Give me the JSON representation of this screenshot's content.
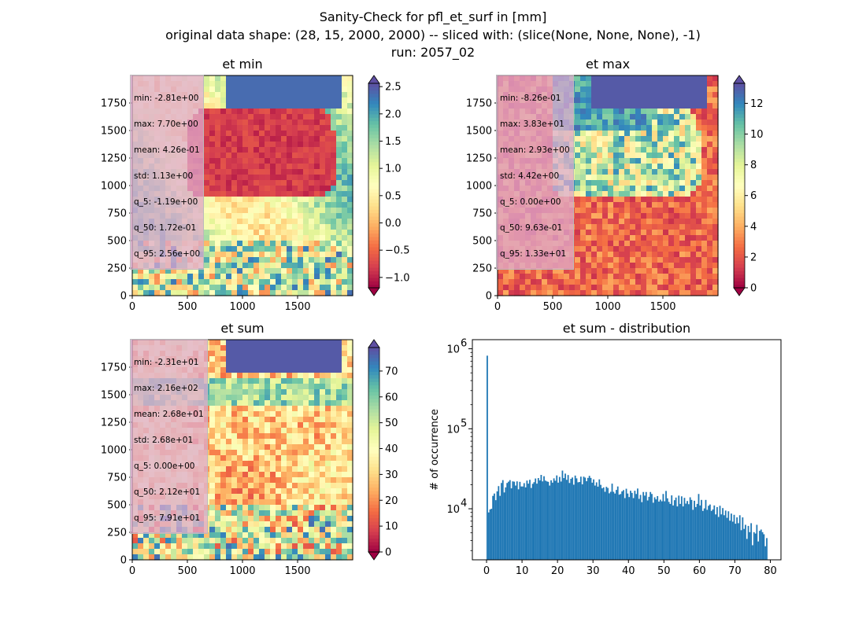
{
  "figure": {
    "title_lines": [
      "Sanity-Check for pfl_et_surf in [mm]",
      "original data shape: (28, 15, 2000, 2000) -- sliced with: (slice(None, None, None), -1)",
      "run: 2057_02"
    ]
  },
  "colors": {
    "spectral_stops": [
      "#9e0142",
      "#d53e4f",
      "#f46d43",
      "#fdae61",
      "#fee08b",
      "#ffffbf",
      "#e6f598",
      "#abdda4",
      "#66c2a5",
      "#3288bd",
      "#5e4fa2"
    ],
    "bar": "#1f77b4",
    "axes": "#000000"
  },
  "chart_data": [
    {
      "type": "heatmap",
      "title": "et min",
      "xlim": [
        0,
        2000
      ],
      "ylim": [
        0,
        2000
      ],
      "xticks": [
        0,
        500,
        1000,
        1500
      ],
      "yticks": [
        0,
        250,
        500,
        750,
        1000,
        1250,
        1500,
        1750
      ],
      "colorbar": {
        "min": -1.19,
        "max": 2.56,
        "ticks": [
          -1.0,
          -0.5,
          0.0,
          0.5,
          1.0,
          1.5,
          2.0,
          2.5
        ],
        "tick_labels": [
          "−1.0",
          "−0.5",
          "0.0",
          "0.5",
          "1.0",
          "1.5",
          "2.0",
          "2.5"
        ],
        "extend": "both"
      },
      "stats": [
        "min: -2.81e+00",
        "max: 7.70e+00",
        "mean: 4.26e-01",
        "std: 1.13e+00",
        "q_5: -1.19e+00",
        "q_50: 1.72e-01",
        "q_95: 2.56e+00"
      ]
    },
    {
      "type": "heatmap",
      "title": "et max",
      "xlim": [
        0,
        2000
      ],
      "ylim": [
        0,
        2000
      ],
      "xticks": [
        0,
        500,
        1000,
        1500
      ],
      "yticks": [
        0,
        250,
        500,
        750,
        1000,
        1250,
        1500,
        1750
      ],
      "colorbar": {
        "min": 0.0,
        "max": 13.3,
        "ticks": [
          0,
          2,
          4,
          6,
          8,
          10,
          12
        ],
        "tick_labels": [
          "0",
          "2",
          "4",
          "6",
          "8",
          "10",
          "12"
        ],
        "extend": "both"
      },
      "stats": [
        "min: -8.26e-01",
        "max: 3.83e+01",
        "mean: 2.93e+00",
        "std: 4.42e+00",
        "q_5: 0.00e+00",
        "q_50: 9.63e-01",
        "q_95: 1.33e+01"
      ]
    },
    {
      "type": "heatmap",
      "title": "et sum",
      "xlim": [
        0,
        2000
      ],
      "ylim": [
        0,
        2000
      ],
      "xticks": [
        0,
        500,
        1000,
        1500
      ],
      "yticks": [
        0,
        250,
        500,
        750,
        1000,
        1250,
        1500,
        1750
      ],
      "colorbar": {
        "min": 0.0,
        "max": 79.1,
        "ticks": [
          0,
          10,
          20,
          30,
          40,
          50,
          60,
          70
        ],
        "tick_labels": [
          "0",
          "10",
          "20",
          "30",
          "40",
          "50",
          "60",
          "70"
        ],
        "extend": "both"
      },
      "stats": [
        "min: -2.31e+01",
        "max: 2.16e+02",
        "mean: 2.68e+01",
        "std: 2.68e+01",
        "q_5: 0.00e+00",
        "q_50: 2.12e+01",
        "q_95: 7.91e+01"
      ]
    },
    {
      "type": "bar",
      "title": "et sum - distribution",
      "ylabel": "# of occurrence",
      "yscale": "log",
      "xlim": [
        -4,
        83
      ],
      "ylim": [
        2300,
        1300000
      ],
      "xticks": [
        0,
        10,
        20,
        30,
        40,
        50,
        60,
        70,
        80
      ],
      "yticks": [
        10000,
        100000,
        1000000
      ],
      "ytick_labels": [
        {
          "base": "10",
          "exp": "4"
        },
        {
          "base": "10",
          "exp": "5"
        },
        {
          "base": "10",
          "exp": "6"
        }
      ],
      "bin_width": 0.4,
      "bins_x": [
        0.0,
        0.4,
        0.8,
        1.2,
        1.6,
        2.0,
        2.4,
        2.8,
        3.2,
        3.6,
        4.0,
        4.4,
        4.8,
        5.2,
        5.6,
        6.0,
        6.4,
        6.8,
        7.2,
        7.6,
        8.0,
        8.4,
        8.8,
        9.2,
        9.6,
        10.0,
        10.4,
        10.8,
        11.2,
        11.6,
        12.0,
        12.4,
        12.8,
        13.2,
        13.6,
        14.0,
        14.4,
        14.8,
        15.2,
        15.6,
        16.0,
        16.4,
        16.8,
        17.2,
        17.6,
        18.0,
        18.4,
        18.8,
        19.2,
        19.6,
        20.0,
        20.4,
        20.8,
        21.2,
        21.6,
        22.0,
        22.4,
        22.8,
        23.2,
        23.6,
        24.0,
        24.4,
        24.8,
        25.2,
        25.6,
        26.0,
        26.4,
        26.8,
        27.2,
        27.6,
        28.0,
        28.4,
        28.8,
        29.2,
        29.6,
        30.0,
        30.4,
        30.8,
        31.2,
        31.6,
        32.0,
        32.4,
        32.8,
        33.2,
        33.6,
        34.0,
        34.4,
        34.8,
        35.2,
        35.6,
        36.0,
        36.4,
        36.8,
        37.2,
        37.6,
        38.0,
        38.4,
        38.8,
        39.2,
        39.6,
        40.0,
        40.4,
        40.8,
        41.2,
        41.6,
        42.0,
        42.4,
        42.8,
        43.2,
        43.6,
        44.0,
        44.4,
        44.8,
        45.2,
        45.6,
        46.0,
        46.4,
        46.8,
        47.2,
        47.6,
        48.0,
        48.4,
        48.8,
        49.2,
        49.6,
        50.0,
        50.4,
        50.8,
        51.2,
        51.6,
        52.0,
        52.4,
        52.8,
        53.2,
        53.6,
        54.0,
        54.4,
        54.8,
        55.2,
        55.6,
        56.0,
        56.4,
        56.8,
        57.2,
        57.6,
        58.0,
        58.4,
        58.8,
        59.2,
        59.6,
        60.0,
        60.4,
        60.8,
        61.2,
        61.6,
        62.0,
        62.4,
        62.8,
        63.2,
        63.6,
        64.0,
        64.4,
        64.8,
        65.2,
        65.6,
        66.0,
        66.4,
        66.8,
        67.2,
        67.6,
        68.0,
        68.4,
        68.8,
        69.2,
        69.6,
        70.0,
        70.4,
        70.8,
        71.2,
        71.6,
        72.0,
        72.4,
        72.8,
        73.2,
        73.6,
        74.0,
        74.4,
        74.8,
        75.2,
        75.6,
        76.0,
        76.4,
        76.8,
        77.2,
        77.6,
        78.0,
        78.4,
        78.8
      ],
      "counts": [
        820000,
        9000,
        9800,
        10000,
        14500,
        15500,
        12800,
        16500,
        19200,
        14500,
        21000,
        22800,
        16000,
        18500,
        21000,
        21800,
        22800,
        18000,
        22000,
        21800,
        19500,
        22000,
        17500,
        21700,
        19000,
        19000,
        20900,
        18500,
        22500,
        20600,
        23000,
        18200,
        20500,
        21500,
        23900,
        20600,
        24200,
        22600,
        26500,
        22000,
        25500,
        22500,
        22000,
        21700,
        19500,
        22700,
        21200,
        24000,
        22400,
        26100,
        21200,
        25000,
        21900,
        30000,
        24200,
        27500,
        23000,
        26400,
        21000,
        23700,
        24600,
        20000,
        26000,
        24000,
        21400,
        21600,
        25200,
        20200,
        25200,
        24500,
        22100,
        24300,
        25800,
        24300,
        21200,
        23300,
        19500,
        21400,
        18900,
        23300,
        19900,
        18000,
        18500,
        16300,
        18800,
        18200,
        15600,
        16300,
        20600,
        16300,
        15500,
        17200,
        19000,
        15000,
        15300,
        16500,
        17100,
        13600,
        17800,
        15500,
        14000,
        16800,
        15800,
        13600,
        16800,
        15300,
        17900,
        13300,
        14900,
        12100,
        16200,
        14600,
        16200,
        12700,
        14100,
        16200,
        15300,
        11900,
        13900,
        13100,
        14400,
        12300,
        13000,
        12400,
        15300,
        12400,
        16700,
        13500,
        12200,
        11500,
        14700,
        11000,
        12800,
        13800,
        10700,
        14600,
        11500,
        14300,
        10700,
        13700,
        11600,
        12500,
        11400,
        13900,
        12900,
        9700,
        12600,
        10500,
        11500,
        15300,
        11000,
        12900,
        9400,
        10100,
        12900,
        9700,
        10900,
        11300,
        9400,
        9800,
        11000,
        8500,
        10500,
        7900,
        10900,
        8500,
        10200,
        8300,
        9500,
        7700,
        9300,
        7100,
        8700,
        6900,
        8400,
        6500,
        7800,
        6600,
        8300,
        5400,
        7800,
        5600,
        6300,
        4200,
        6100,
        5100,
        6600,
        3500,
        5100,
        4900,
        6300,
        3900,
        5300,
        5500,
        5100,
        4800,
        3400,
        4300,
        5200,
        4900
      ]
    }
  ]
}
